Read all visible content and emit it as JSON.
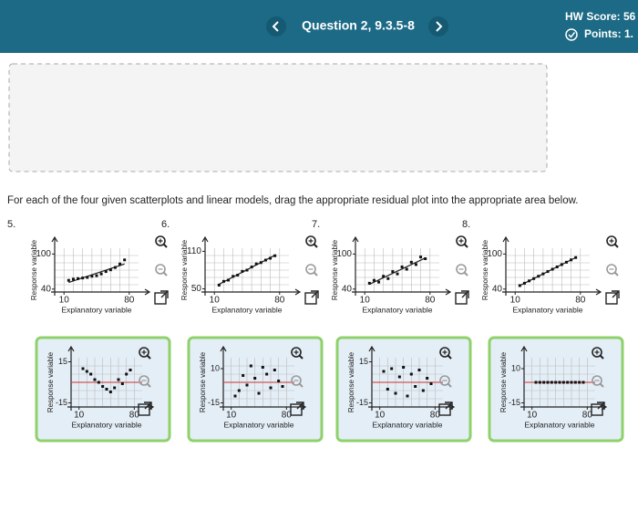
{
  "header": {
    "question": "Question 2, 9.3.5-8",
    "hw_score": "HW Score: 56",
    "points": "Points: 1."
  },
  "instruction": "For each of the four given scatterplots and linear models, drag the appropriate residual plot into the appropriate area below.",
  "scatterplots": [
    {
      "number": "5.",
      "y_label": "Response variable",
      "x_label": "Explanatory variable",
      "xlim": [
        0,
        90
      ],
      "ylim": [
        35,
        110
      ],
      "xticks": [
        10,
        80
      ],
      "yticks": [
        40,
        100
      ],
      "points": [
        [
          15,
          55
        ],
        [
          20,
          57
        ],
        [
          25,
          58
        ],
        [
          30,
          59
        ],
        [
          35,
          60
        ],
        [
          40,
          62
        ],
        [
          45,
          63
        ],
        [
          50,
          66
        ],
        [
          55,
          70
        ],
        [
          60,
          73
        ],
        [
          65,
          77
        ],
        [
          70,
          83
        ],
        [
          75,
          90
        ]
      ]
    },
    {
      "number": "6.",
      "y_label": "Response variable",
      "x_label": "Explanatory variable",
      "xlim": [
        0,
        90
      ],
      "ylim": [
        45,
        115
      ],
      "xticks": [
        10,
        80
      ],
      "yticks": [
        50,
        110
      ],
      "points": [
        [
          15,
          56
        ],
        [
          20,
          62
        ],
        [
          25,
          64
        ],
        [
          30,
          70
        ],
        [
          35,
          72
        ],
        [
          40,
          78
        ],
        [
          45,
          80
        ],
        [
          50,
          85
        ],
        [
          55,
          90
        ],
        [
          60,
          92
        ],
        [
          65,
          96
        ],
        [
          70,
          99
        ],
        [
          75,
          103
        ]
      ]
    },
    {
      "number": "7.",
      "y_label": "Response variable",
      "x_label": "Explanatory variable",
      "xlim": [
        0,
        90
      ],
      "ylim": [
        35,
        110
      ],
      "xticks": [
        10,
        80
      ],
      "yticks": [
        40,
        100
      ],
      "points": [
        [
          15,
          50
        ],
        [
          20,
          55
        ],
        [
          25,
          52
        ],
        [
          30,
          62
        ],
        [
          35,
          58
        ],
        [
          40,
          70
        ],
        [
          45,
          66
        ],
        [
          50,
          78
        ],
        [
          55,
          74
        ],
        [
          60,
          86
        ],
        [
          65,
          82
        ],
        [
          70,
          95
        ],
        [
          75,
          92
        ]
      ]
    },
    {
      "number": "8.",
      "y_label": "Response variable",
      "x_label": "Explanatory variable",
      "xlim": [
        0,
        90
      ],
      "ylim": [
        35,
        110
      ],
      "xticks": [
        10,
        80
      ],
      "yticks": [
        40,
        100
      ],
      "points": [
        [
          15,
          46
        ],
        [
          20,
          50
        ],
        [
          25,
          54
        ],
        [
          30,
          58
        ],
        [
          35,
          62
        ],
        [
          40,
          66
        ],
        [
          45,
          70
        ],
        [
          50,
          74
        ],
        [
          55,
          78
        ],
        [
          60,
          82
        ],
        [
          65,
          86
        ],
        [
          70,
          90
        ],
        [
          75,
          94
        ]
      ]
    }
  ],
  "residual_plots": [
    {
      "y_label": "Response variable",
      "x_label": "Explanatory variable",
      "xlim": [
        0,
        90
      ],
      "ylim": [
        -18,
        18
      ],
      "xticks": [
        10,
        80
      ],
      "yticks": [
        -15,
        15
      ],
      "points": [
        [
          15,
          10
        ],
        [
          20,
          8
        ],
        [
          25,
          6
        ],
        [
          30,
          2
        ],
        [
          35,
          0
        ],
        [
          40,
          -3
        ],
        [
          45,
          -5
        ],
        [
          50,
          -7
        ],
        [
          55,
          -4
        ],
        [
          60,
          2
        ],
        [
          65,
          -1
        ],
        [
          70,
          6
        ],
        [
          75,
          9
        ]
      ]
    },
    {
      "y_label": "Response variable",
      "x_label": "Explanatory variable",
      "xlim": [
        0,
        90
      ],
      "ylim": [
        -18,
        18
      ],
      "xticks": [
        10,
        80
      ],
      "yticks": [
        -15,
        10
      ],
      "points": [
        [
          15,
          -10
        ],
        [
          20,
          -6
        ],
        [
          25,
          5
        ],
        [
          30,
          -2
        ],
        [
          35,
          12
        ],
        [
          40,
          3
        ],
        [
          45,
          -8
        ],
        [
          50,
          11
        ],
        [
          55,
          6
        ],
        [
          60,
          -4
        ],
        [
          65,
          9
        ],
        [
          70,
          1
        ],
        [
          75,
          -3
        ]
      ]
    },
    {
      "y_label": "Response variable",
      "x_label": "Explanatory variable",
      "xlim": [
        0,
        90
      ],
      "ylim": [
        -18,
        18
      ],
      "xticks": [
        10,
        80
      ],
      "yticks": [
        -15,
        15
      ],
      "points": [
        [
          15,
          8
        ],
        [
          20,
          -5
        ],
        [
          25,
          10
        ],
        [
          30,
          -8
        ],
        [
          35,
          4
        ],
        [
          40,
          11
        ],
        [
          45,
          -10
        ],
        [
          50,
          6
        ],
        [
          55,
          -3
        ],
        [
          60,
          9
        ],
        [
          65,
          -6
        ],
        [
          70,
          3
        ],
        [
          75,
          -1
        ]
      ]
    },
    {
      "y_label": "Response variable",
      "x_label": "Explanatory variable",
      "xlim": [
        0,
        90
      ],
      "ylim": [
        -18,
        18
      ],
      "xticks": [
        10,
        80
      ],
      "yticks": [
        -15,
        10
      ],
      "points": [
        [
          15,
          0
        ],
        [
          20,
          0
        ],
        [
          25,
          0
        ],
        [
          30,
          0
        ],
        [
          35,
          0
        ],
        [
          40,
          0
        ],
        [
          45,
          0
        ],
        [
          50,
          0
        ],
        [
          55,
          0
        ],
        [
          60,
          0
        ],
        [
          65,
          0
        ],
        [
          70,
          0
        ],
        [
          75,
          0
        ]
      ]
    }
  ]
}
